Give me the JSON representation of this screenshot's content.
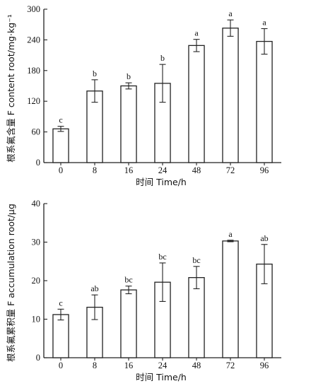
{
  "chart_data": [
    {
      "type": "bar",
      "categories": [
        "0",
        "8",
        "16",
        "24",
        "48",
        "72",
        "96"
      ],
      "values": [
        66,
        140,
        150,
        155,
        229,
        263,
        237
      ],
      "error": [
        5,
        22,
        6,
        37,
        12,
        16,
        25
      ],
      "significance": [
        "c",
        "b",
        "b",
        "b",
        "a",
        "a",
        "a"
      ],
      "xlabel": "时间 Time/h",
      "ylabel": "根系氟含量 F content root/mg·kg⁻¹",
      "ylim": [
        0,
        300
      ],
      "yticks": [
        "0",
        "60",
        "120",
        "180",
        "240",
        "300"
      ],
      "grid": false
    },
    {
      "type": "bar",
      "categories": [
        "0",
        "8",
        "16",
        "24",
        "48",
        "72",
        "96"
      ],
      "values": [
        11.2,
        13.1,
        17.6,
        19.6,
        20.8,
        30.3,
        24.3
      ],
      "error": [
        1.4,
        3.2,
        1.0,
        5.0,
        2.9,
        0.2,
        5.1
      ],
      "significance": [
        "c",
        "ab",
        "bc",
        "bc",
        "bc",
        "a",
        "ab"
      ],
      "xlabel": "时间 Time/h",
      "ylabel": "根系氟累积量 F accumulation root/μg",
      "ylim": [
        0,
        40
      ],
      "yticks": [
        "0",
        "10",
        "20",
        "30",
        "40"
      ],
      "grid": false
    }
  ]
}
